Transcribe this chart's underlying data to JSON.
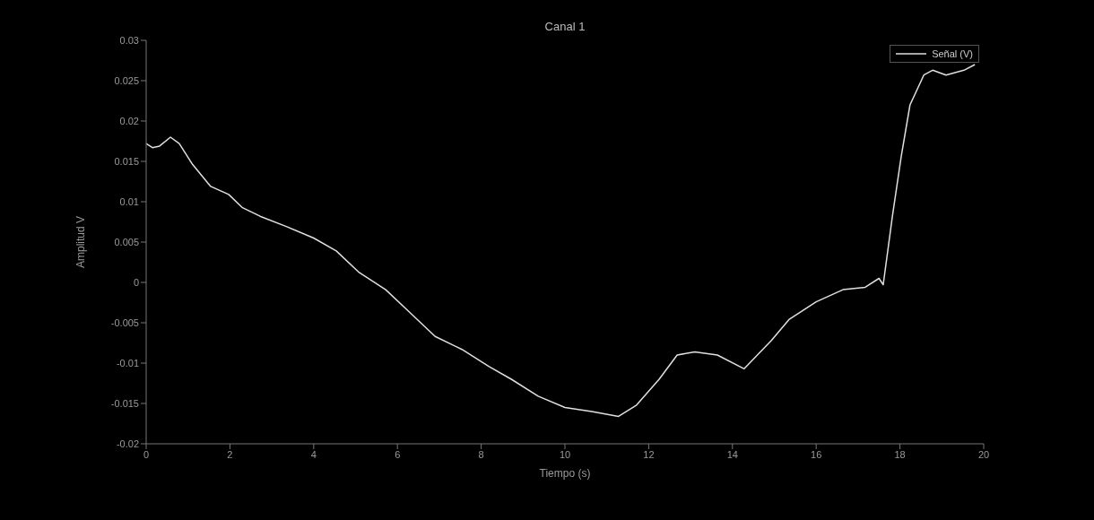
{
  "chart_data": {
    "type": "line",
    "title": "Canal 1",
    "xlabel": "Tiempo (s)",
    "ylabel": "Amplitud V",
    "xlim": [
      0,
      20
    ],
    "xticks": [
      0,
      2,
      4,
      6,
      8,
      10,
      12,
      14,
      16,
      18,
      20
    ],
    "ylim": [
      -0.02,
      0.03
    ],
    "yticks": [
      -0.02,
      -0.015,
      -0.01,
      -0.005,
      0,
      0.005,
      0.01,
      0.015,
      0.02,
      0.025,
      0.03
    ],
    "grid": false,
    "legend": "top right",
    "marker": "none",
    "line_style": "solid",
    "series": [
      {
        "name": "Señal (V)",
        "color": "#e0e0e0",
        "x": [
          0,
          0.15,
          0.32,
          0.58,
          0.79,
          1.11,
          1.54,
          1.97,
          2.29,
          2.72,
          3.36,
          4.0,
          4.54,
          5.07,
          5.72,
          6.25,
          6.9,
          7.54,
          8.18,
          8.72,
          9.36,
          10.0,
          10.64,
          11.28,
          11.71,
          12.25,
          12.68,
          13.1,
          13.64,
          14.28,
          14.93,
          15.35,
          16.0,
          16.64,
          17.17,
          17.5,
          17.6,
          17.82,
          18.03,
          18.24,
          18.57,
          18.78,
          19.1,
          19.53,
          19.79
        ],
        "values": [
          0.0172,
          0.0167,
          0.0169,
          0.018,
          0.0172,
          0.0146,
          0.0119,
          0.0109,
          0.0093,
          0.0082,
          0.0069,
          0.0055,
          0.0039,
          0.0013,
          -0.0009,
          -0.0035,
          -0.0067,
          -0.0083,
          -0.0104,
          -0.012,
          -0.0141,
          -0.0155,
          -0.016,
          -0.0166,
          -0.0152,
          -0.012,
          -0.009,
          -0.0086,
          -0.009,
          -0.0107,
          -0.0072,
          -0.0046,
          -0.0024,
          -0.0009,
          -0.0006,
          0.0005,
          -0.0003,
          0.0082,
          0.0156,
          0.022,
          0.0257,
          0.0263,
          0.0257,
          0.0263,
          0.027
        ]
      }
    ]
  }
}
